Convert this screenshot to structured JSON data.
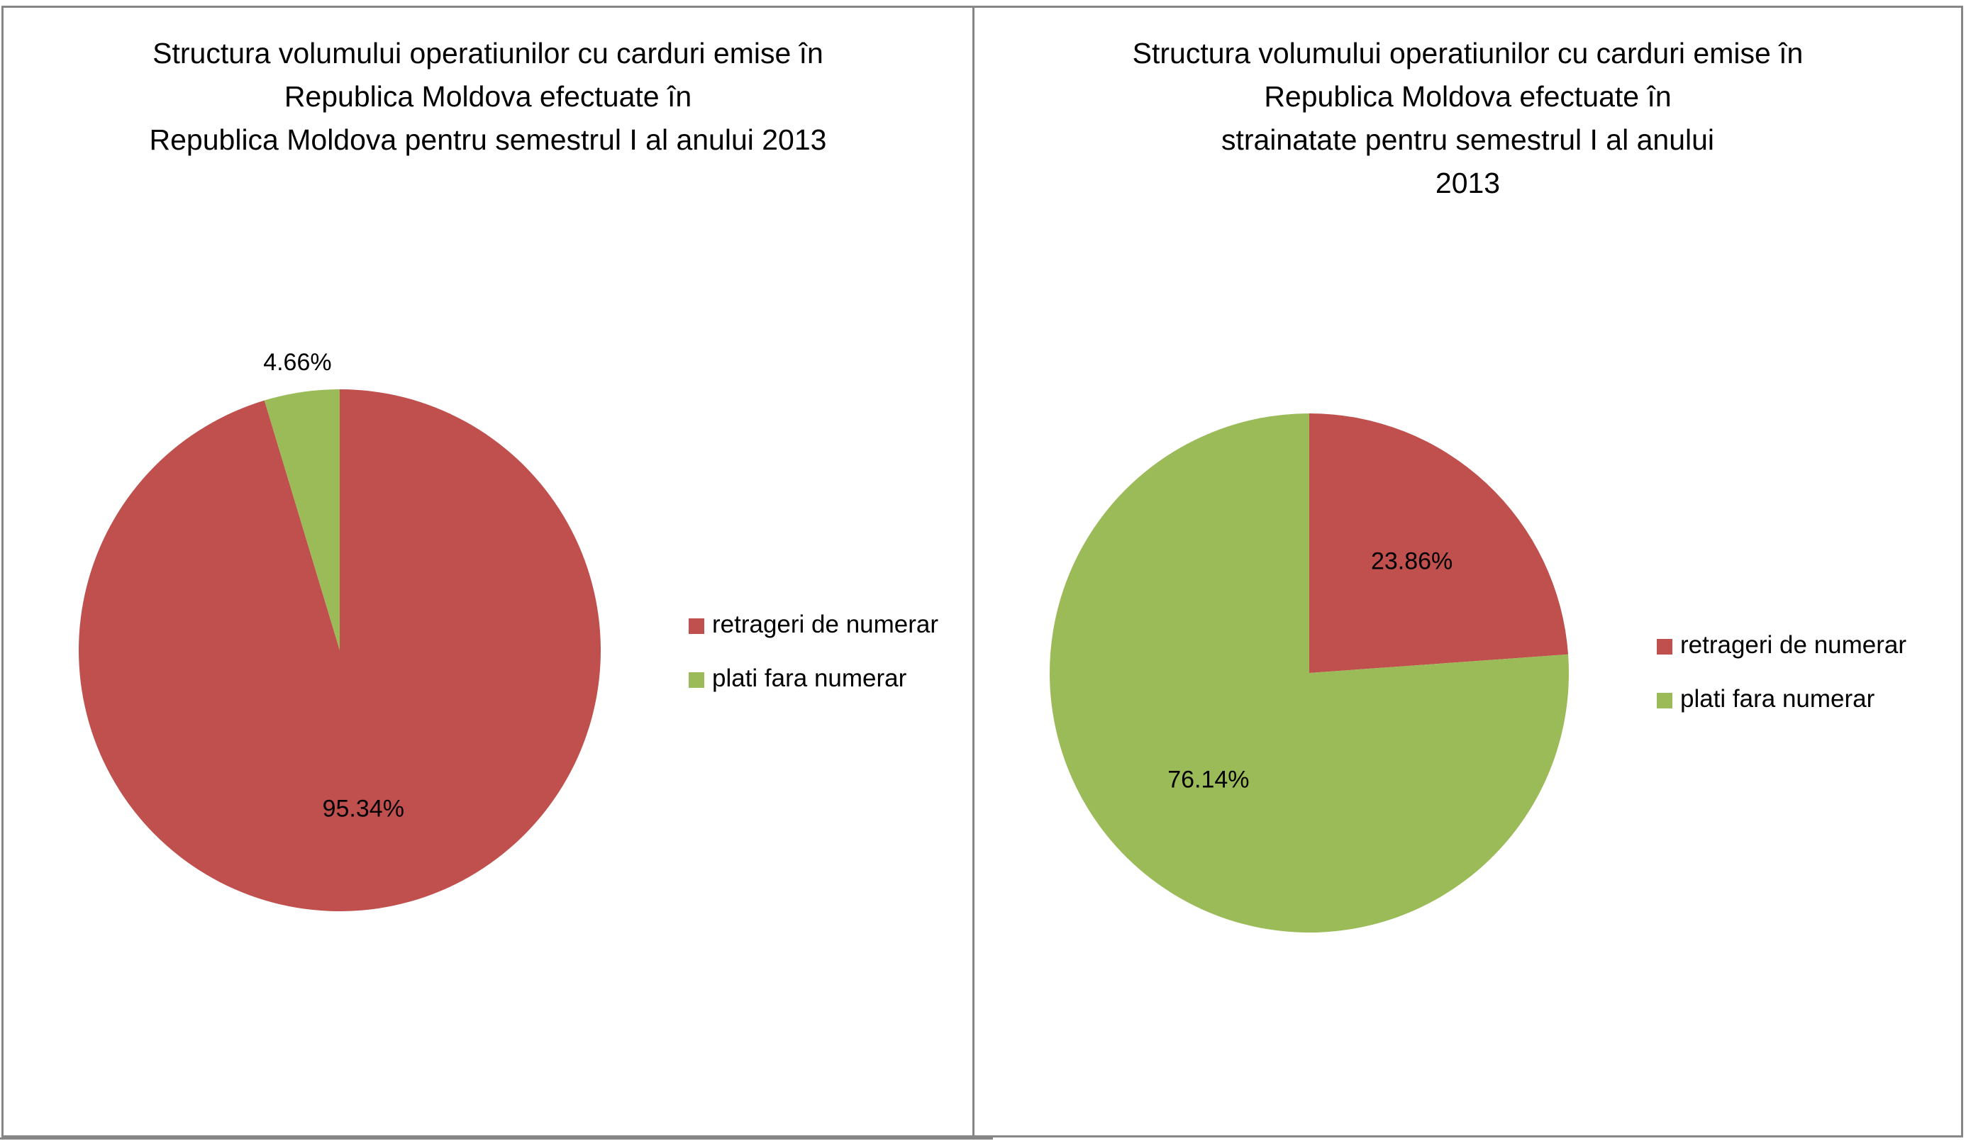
{
  "colors": {
    "retrageri": "#c0504d",
    "plati": "#9bbb59",
    "border": "#868686"
  },
  "chart_data": [
    {
      "type": "pie",
      "title_lines": [
        "Structura volumului operatiunilor cu carduri emise în",
        "Republica Moldova efectuate în",
        "Republica Moldova pentru semestrul I al anului 2013"
      ],
      "categories": [
        "retrageri de numerar",
        "plati fara numerar"
      ],
      "values": [
        95.34,
        4.66
      ],
      "data_labels": [
        "95.34%",
        "4.66%"
      ],
      "start_angle_deg": 0,
      "direction": "clockwise",
      "legend_position": "right"
    },
    {
      "type": "pie",
      "title_lines": [
        "Structura volumului operatiunilor cu carduri emise în",
        "Republica Moldova efectuate în",
        "strainatate pentru semestrul I al anului",
        "2013"
      ],
      "categories": [
        "retrageri de numerar",
        "plati fara numerar"
      ],
      "values": [
        23.86,
        76.14
      ],
      "data_labels": [
        "23.86%",
        "76.14%"
      ],
      "start_angle_deg": 0,
      "direction": "clockwise",
      "legend_position": "right"
    }
  ]
}
